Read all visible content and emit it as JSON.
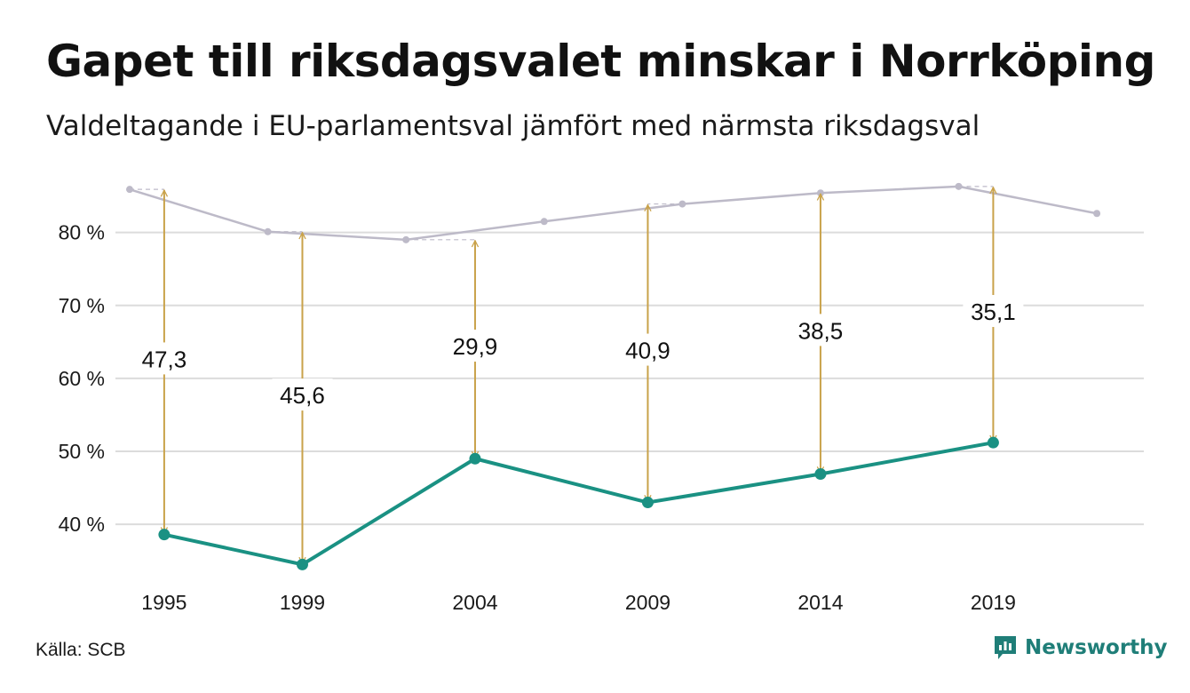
{
  "header": {
    "title": "Gapet till riksdagsvalet minskar i Norrköping",
    "subtitle": "Valdeltagande i EU-parlamentsval jämfört med närmsta riksdagsval"
  },
  "footer": {
    "source": "Källa: SCB",
    "brand": "Newsworthy",
    "brand_icon": "bar-chart-speech-icon"
  },
  "colors": {
    "eu_line": "#1a9183",
    "riksdag_line": "#bdbac8",
    "arrow": "#c9a24a",
    "grid": "#dcdcdc",
    "brand": "#1f7e78"
  },
  "chart_data": {
    "type": "line",
    "x_ticks": [
      "1995",
      "1999",
      "2004",
      "2009",
      "2014",
      "2019"
    ],
    "y_ticks": [
      "40 %",
      "50 %",
      "60 %",
      "70 %",
      "80 %"
    ],
    "y_tick_values": [
      40,
      50,
      60,
      70,
      80
    ],
    "xlim": [
      1994,
      2023
    ],
    "ylim": [
      31.5,
      87.5
    ],
    "grid": true,
    "series": [
      {
        "key": "eu",
        "x": [
          1995,
          1999,
          2004,
          2009,
          2014,
          2019
        ],
        "values": [
          38.6,
          34.5,
          49.0,
          43.0,
          46.9,
          51.2
        ]
      },
      {
        "key": "riksdag",
        "x": [
          1994,
          1998,
          2002,
          2006,
          2010,
          2014,
          2018,
          2022
        ],
        "values": [
          85.9,
          80.1,
          79.0,
          81.5,
          83.9,
          85.4,
          86.3,
          82.6
        ]
      }
    ],
    "gaps": [
      {
        "x": 1995,
        "from": 38.6,
        "to": 85.9,
        "label": "47,3"
      },
      {
        "x": 1999,
        "from": 34.5,
        "to": 80.1,
        "label": "45,6"
      },
      {
        "x": 2004,
        "from": 49.0,
        "to": 79.0,
        "label": "29,9"
      },
      {
        "x": 2009,
        "from": 43.0,
        "to": 83.9,
        "label": "40,9"
      },
      {
        "x": 2014,
        "from": 46.9,
        "to": 85.4,
        "label": "38,5"
      },
      {
        "x": 2019,
        "from": 51.2,
        "to": 86.3,
        "label": "35,1"
      }
    ]
  }
}
